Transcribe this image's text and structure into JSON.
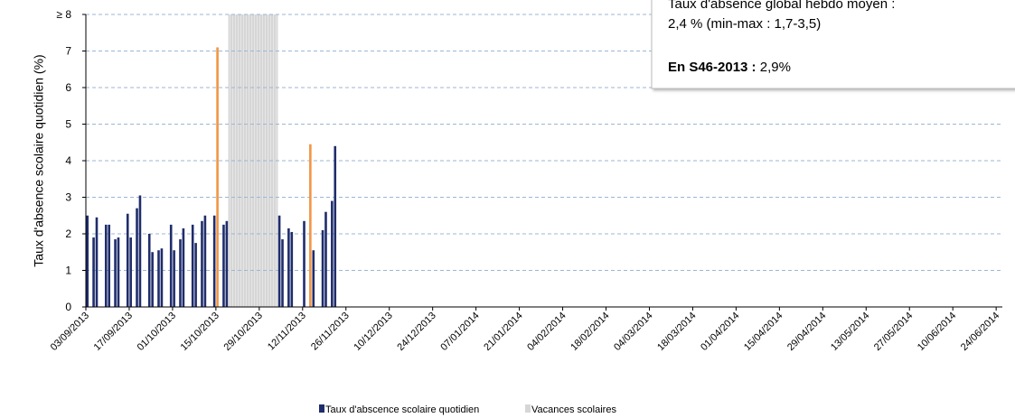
{
  "chart_data": {
    "type": "bar",
    "ylabel": "Taux d'absence scolaire quotidien (%)",
    "x": [
      "03/09/2013",
      "05/09/2013",
      "06/09/2013",
      "09/09/2013",
      "10/09/2013",
      "12/09/2013",
      "13/09/2013",
      "16/09/2013",
      "17/09/2013",
      "19/09/2013",
      "20/09/2013",
      "23/09/2013",
      "24/09/2013",
      "26/09/2013",
      "27/09/2013",
      "30/09/2013",
      "01/10/2013",
      "03/10/2013",
      "04/10/2013",
      "07/10/2013",
      "08/10/2013",
      "10/10/2013",
      "11/10/2013",
      "14/10/2013",
      "15/10/2013",
      "17/10/2013",
      "18/10/2013",
      "04/11/2013",
      "05/11/2013",
      "07/11/2013",
      "08/11/2013",
      "12/11/2013",
      "14/11/2013",
      "15/11/2013",
      "18/11/2013",
      "19/11/2013",
      "21/11/2013",
      "22/11/2013"
    ],
    "series": [
      {
        "name": "Taux d'abscence scolaire quotidien",
        "color": "#1f2d6b",
        "values": [
          2.5,
          1.9,
          2.45,
          2.25,
          2.25,
          1.85,
          1.9,
          2.55,
          1.9,
          2.7,
          3.05,
          2.0,
          1.5,
          1.55,
          1.6,
          2.25,
          1.55,
          1.85,
          2.15,
          2.25,
          1.75,
          2.35,
          2.5,
          2.5,
          null,
          2.25,
          2.35,
          2.5,
          1.85,
          2.15,
          2.05,
          2.35,
          null,
          1.55,
          2.1,
          2.6,
          2.9,
          4.4
        ]
      },
      {
        "color": "#f29545",
        "values": [
          null,
          null,
          null,
          null,
          null,
          null,
          null,
          null,
          null,
          null,
          null,
          null,
          null,
          null,
          null,
          null,
          null,
          null,
          null,
          null,
          null,
          null,
          null,
          null,
          7.1,
          null,
          null,
          null,
          null,
          null,
          null,
          null,
          4.45,
          null,
          null,
          null,
          null,
          null
        ]
      },
      {
        "name": "Vacances scolaires",
        "color": "#d6d6d6",
        "ranges": [
          [
            "19/10/2013",
            "03/11/2013"
          ]
        ]
      }
    ],
    "xlim": [
      "03/09/2013",
      "26/06/2014"
    ],
    "xticks": [
      "03/09/2013",
      "17/09/2013",
      "01/10/2013",
      "15/10/2013",
      "29/10/2013",
      "12/11/2013",
      "26/11/2013",
      "10/12/2013",
      "24/12/2013",
      "07/01/2014",
      "21/01/2014",
      "04/02/2014",
      "18/02/2014",
      "04/03/2014",
      "18/03/2014",
      "01/04/2014",
      "15/04/2014",
      "29/04/2014",
      "13/05/2014",
      "27/05/2014",
      "10/06/2014",
      "24/06/2014"
    ],
    "ylim": [
      0,
      8
    ],
    "yticks": [
      0,
      1,
      2,
      3,
      4,
      5,
      6,
      7,
      {
        "value": 8,
        "label": "≥ 8"
      }
    ],
    "grid": true,
    "annotation": {
      "line1": "Taux d'absence global hebdo moyen :",
      "line2": "2,4 % (min-max : 1,7-3,5)",
      "label": "En S46-2013 :",
      "value": "2,9%"
    }
  }
}
